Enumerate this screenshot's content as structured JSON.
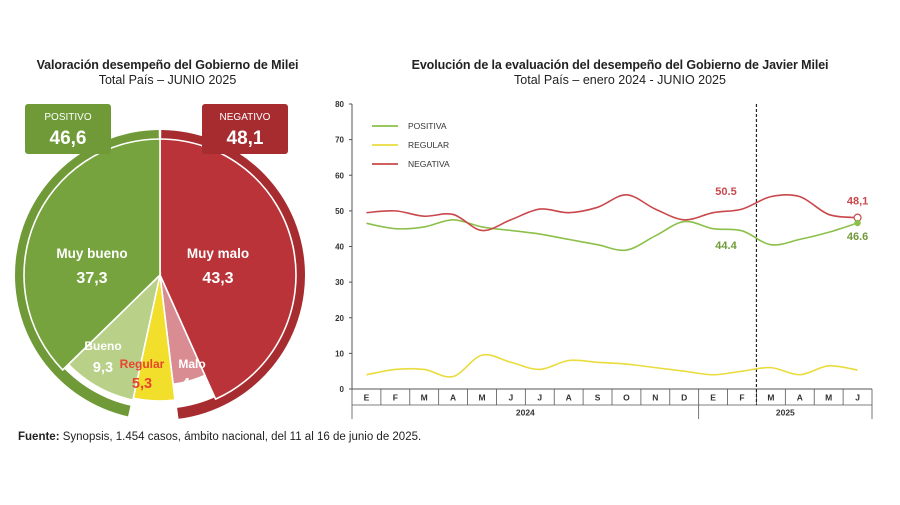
{
  "left": {
    "title": "Valoración desempeño del Gobierno de Milei",
    "subtitle": "Total País – JUNIO 2025",
    "positive_box": {
      "label": "POSITIVO",
      "value": "46,6",
      "color": "#6f9a37"
    },
    "negative_box": {
      "label": "NEGATIVO",
      "value": "48,1",
      "color": "#a72c2f"
    }
  },
  "right": {
    "title": "Evolución de la evaluación del desempeño del Gobierno de Javier Milei",
    "subtitle": "Total País – enero 2024 - JUNIO 2025"
  },
  "source": {
    "label": "Fuente:",
    "text": "Synopsis, 1.454 casos, ámbito nacional, del 11 al 16 de junio de 2025."
  },
  "chart_data": [
    {
      "type": "pie",
      "slices": [
        {
          "label": "Muy malo",
          "value": 43.3,
          "display": "43,3",
          "color": "#b93338"
        },
        {
          "label": "Malo",
          "value": 4.8,
          "display": "4,8",
          "color": "#d98d93"
        },
        {
          "label": "Regular",
          "value": 5.3,
          "display": "5,3",
          "color": "#f1df2c"
        },
        {
          "label": "Bueno",
          "value": 9.3,
          "display": "9,3",
          "color": "#b9d089"
        },
        {
          "label": "Muy bueno",
          "value": 37.3,
          "display": "37,3",
          "color": "#76a33d"
        }
      ],
      "outer_ring": [
        {
          "group": "NEGATIVO",
          "value": 48.1,
          "color": "#a72c2f"
        },
        {
          "group": "POSITIVO",
          "value": 46.6,
          "color": "#6f9a37"
        }
      ]
    },
    {
      "type": "line",
      "ylim": [
        0,
        80
      ],
      "yticks": [
        "0",
        "10",
        "20",
        "30",
        "40",
        "50",
        "60",
        "70",
        "80"
      ],
      "categories": [
        "E",
        "F",
        "M",
        "A",
        "M",
        "J",
        "J",
        "A",
        "S",
        "O",
        "N",
        "D",
        "E",
        "F",
        "M",
        "A",
        "M",
        "J"
      ],
      "year_groups": [
        {
          "label": "2024",
          "from": 0,
          "to": 11
        },
        {
          "label": "2025",
          "from": 12,
          "to": 17
        }
      ],
      "divider_after_index": 13,
      "legend": "top-left",
      "series": [
        {
          "name": "POSITIVA",
          "color": "#8cc04a",
          "values": [
            46.5,
            45,
            45.5,
            47.5,
            45.5,
            44.5,
            43.5,
            42,
            40.5,
            39,
            43,
            47,
            45,
            44.4,
            40.5,
            42,
            44,
            46.6
          ]
        },
        {
          "name": "REGULAR",
          "color": "#e9dc3c",
          "values": [
            4,
            5.5,
            5.5,
            3.5,
            9.5,
            7.5,
            5.5,
            8,
            7.5,
            7,
            6,
            5,
            4,
            5,
            6,
            4,
            6.5,
            5.3
          ]
        },
        {
          "name": "NEGATIVA",
          "color": "#c9484c",
          "values": [
            49.5,
            50,
            48.5,
            49,
            44.5,
            47.5,
            50.5,
            49.5,
            51,
            54.5,
            50.5,
            47.5,
            49.5,
            50.5,
            54,
            54,
            49,
            48.1
          ]
        }
      ],
      "annotations": [
        {
          "text": "50.5",
          "index": 13,
          "value": 50.5,
          "color": "#c9484c"
        },
        {
          "text": "44.4",
          "index": 13,
          "value": 44.4,
          "color": "#6f9a37"
        },
        {
          "text": "48,1",
          "index": 17,
          "value": 48.1,
          "color": "#c9484c"
        },
        {
          "text": "46.6",
          "index": 17,
          "value": 46.6,
          "color": "#6f9a37"
        }
      ]
    }
  ]
}
